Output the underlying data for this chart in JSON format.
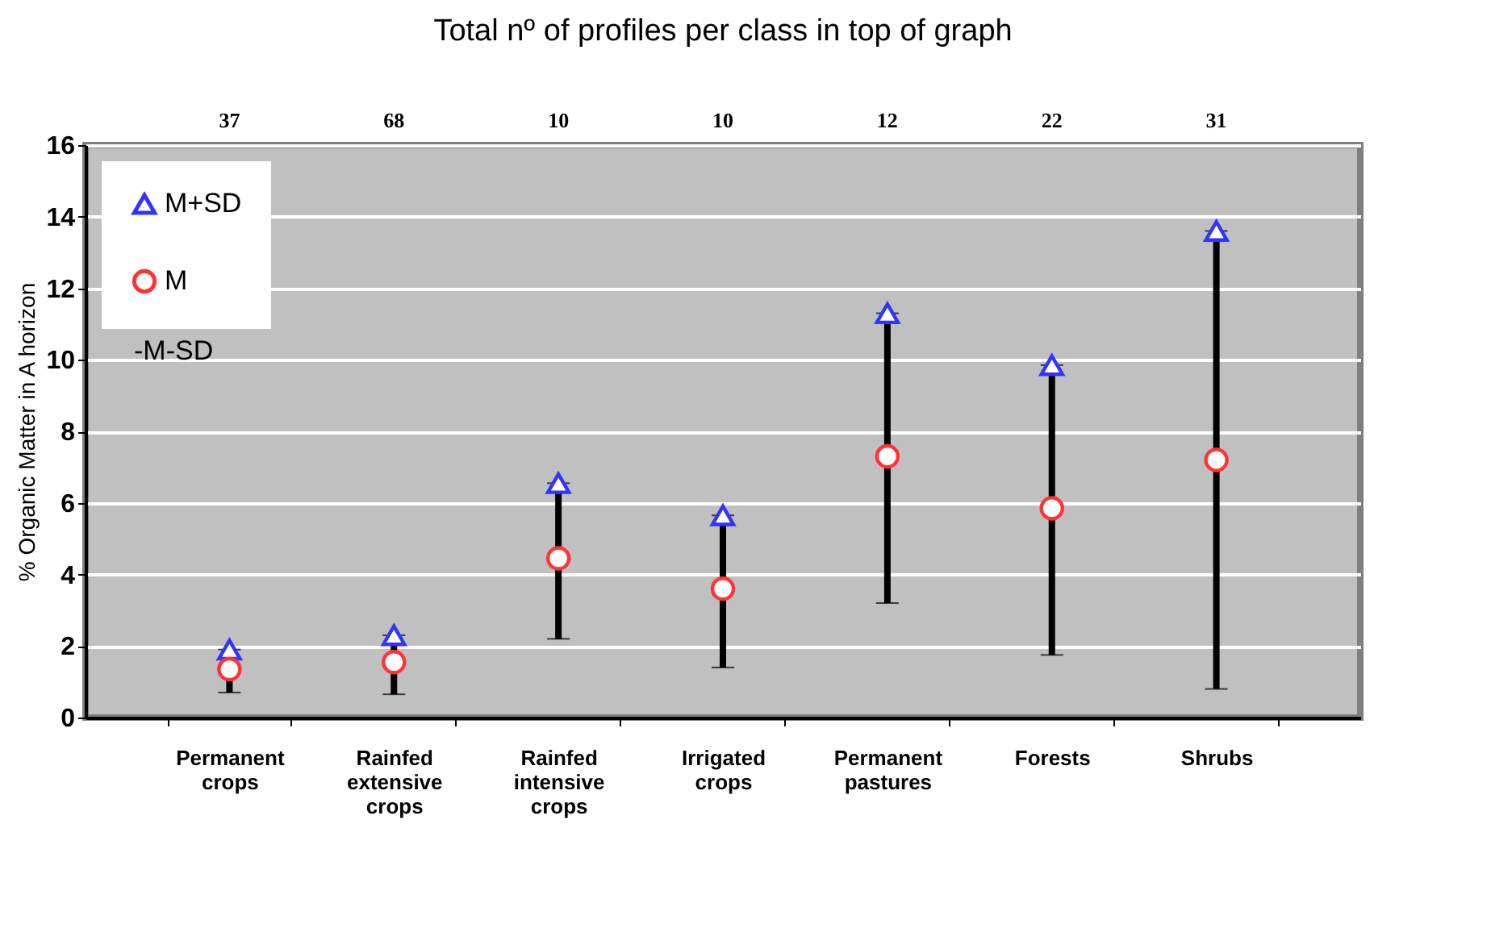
{
  "chart_data": {
    "type": "scatter",
    "title": "Total nº of profiles per class in top of graph",
    "ylabel": "% Organic Matter in A horizon",
    "categories": [
      "Permanent crops",
      "Rainfed extensive crops",
      "Rainfed intensive crops",
      "Irrigated crops",
      "Permanent pastures",
      "Forests",
      "Shrubs"
    ],
    "series": [
      {
        "name": "M+SD",
        "color": "#3333ff",
        "marker": "triangle",
        "values": [
          1.9,
          2.3,
          6.55,
          5.65,
          11.3,
          9.85,
          13.6
        ]
      },
      {
        "name": "M",
        "color": "#ff3333",
        "marker": "circle",
        "values": [
          1.35,
          1.55,
          4.45,
          3.6,
          7.3,
          5.85,
          7.2
        ],
        "errors": [
          [
            0.7,
            1.9
          ],
          [
            0.65,
            2.3
          ],
          [
            2.2,
            6.55
          ],
          [
            1.4,
            5.65
          ],
          [
            3.2,
            11.3
          ],
          [
            1.75,
            9.85
          ],
          [
            0.8,
            13.6
          ]
        ]
      }
    ],
    "annotations": [
      "37",
      "68",
      "10",
      "10",
      "12",
      "22",
      "31",
      "-M-SD"
    ],
    "ylim": [
      0,
      16
    ],
    "yticks": [
      0,
      2,
      4,
      6,
      8,
      10,
      12,
      14,
      16
    ],
    "grid": "y",
    "legend": "top left"
  }
}
